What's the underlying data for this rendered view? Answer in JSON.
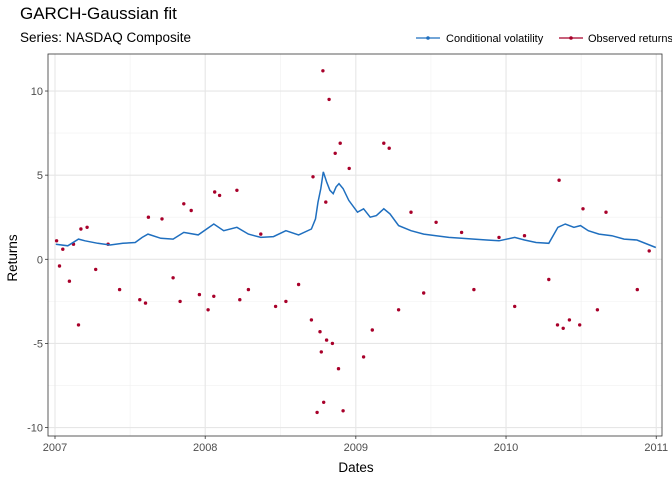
{
  "chart_data": {
    "type": "line",
    "title": "GARCH-Gaussian fit",
    "subtitle": "Series: NASDAQ Composite",
    "xlabel": "Dates",
    "ylabel": "Returns",
    "xlim": [
      "2006-12-15",
      "2011-01-15"
    ],
    "ylim": [
      -10.5,
      12.2
    ],
    "x_ticks": [
      {
        "date": "2007-01-01",
        "label": "2007"
      },
      {
        "date": "2008-01-01",
        "label": "2008"
      },
      {
        "date": "2009-01-01",
        "label": "2009"
      },
      {
        "date": "2010-01-01",
        "label": "2010"
      },
      {
        "date": "2011-01-01",
        "label": "2011"
      }
    ],
    "y_ticks": [
      -10,
      -5,
      0,
      5,
      10
    ],
    "y_tick_labels": [
      "-10",
      "-5",
      "0",
      "5",
      "10"
    ],
    "grid": true,
    "legend_position": "top-right",
    "colors": {
      "volatility": "#1f6fbf",
      "returns": "#a8002a"
    },
    "series": [
      {
        "name": "Conditional volatility",
        "kind": "line",
        "points": [
          [
            "2007-01-03",
            0.9
          ],
          [
            "2007-02-01",
            0.8
          ],
          [
            "2007-02-27",
            1.2
          ],
          [
            "2007-03-15",
            1.1
          ],
          [
            "2007-04-15",
            0.95
          ],
          [
            "2007-05-15",
            0.85
          ],
          [
            "2007-06-15",
            0.95
          ],
          [
            "2007-07-15",
            1.0
          ],
          [
            "2007-08-01",
            1.3
          ],
          [
            "2007-08-15",
            1.5
          ],
          [
            "2007-09-15",
            1.25
          ],
          [
            "2007-10-15",
            1.2
          ],
          [
            "2007-11-10",
            1.6
          ],
          [
            "2007-12-15",
            1.45
          ],
          [
            "2008-01-22",
            2.1
          ],
          [
            "2008-02-15",
            1.7
          ],
          [
            "2008-03-18",
            1.9
          ],
          [
            "2008-04-15",
            1.5
          ],
          [
            "2008-05-15",
            1.3
          ],
          [
            "2008-06-15",
            1.35
          ],
          [
            "2008-07-15",
            1.7
          ],
          [
            "2008-08-15",
            1.45
          ],
          [
            "2008-09-15",
            1.8
          ],
          [
            "2008-09-25",
            2.4
          ],
          [
            "2008-10-01",
            3.4
          ],
          [
            "2008-10-08",
            4.2
          ],
          [
            "2008-10-14",
            5.2
          ],
          [
            "2008-10-22",
            4.6
          ],
          [
            "2008-10-30",
            4.1
          ],
          [
            "2008-11-07",
            3.9
          ],
          [
            "2008-11-14",
            4.3
          ],
          [
            "2008-11-21",
            4.5
          ],
          [
            "2008-12-01",
            4.2
          ],
          [
            "2008-12-15",
            3.5
          ],
          [
            "2009-01-05",
            2.8
          ],
          [
            "2009-01-20",
            3.0
          ],
          [
            "2009-02-05",
            2.5
          ],
          [
            "2009-02-20",
            2.6
          ],
          [
            "2009-03-10",
            3.0
          ],
          [
            "2009-03-25",
            2.7
          ],
          [
            "2009-04-15",
            2.0
          ],
          [
            "2009-05-15",
            1.7
          ],
          [
            "2009-06-15",
            1.5
          ],
          [
            "2009-07-15",
            1.4
          ],
          [
            "2009-08-15",
            1.3
          ],
          [
            "2009-09-15",
            1.25
          ],
          [
            "2009-10-15",
            1.2
          ],
          [
            "2009-11-15",
            1.15
          ],
          [
            "2009-12-15",
            1.1
          ],
          [
            "2010-01-22",
            1.3
          ],
          [
            "2010-02-15",
            1.15
          ],
          [
            "2010-03-15",
            1.0
          ],
          [
            "2010-04-15",
            0.95
          ],
          [
            "2010-05-07",
            1.9
          ],
          [
            "2010-05-25",
            2.1
          ],
          [
            "2010-06-15",
            1.9
          ],
          [
            "2010-07-01",
            2.0
          ],
          [
            "2010-07-20",
            1.7
          ],
          [
            "2010-08-15",
            1.5
          ],
          [
            "2010-09-15",
            1.4
          ],
          [
            "2010-10-15",
            1.2
          ],
          [
            "2010-11-15",
            1.15
          ],
          [
            "2010-12-31",
            0.7
          ]
        ]
      },
      {
        "name": "Observed returns",
        "kind": "points",
        "points": [
          [
            "2007-01-05",
            1.1
          ],
          [
            "2007-01-12",
            -0.4
          ],
          [
            "2007-01-20",
            0.6
          ],
          [
            "2007-02-05",
            -1.3
          ],
          [
            "2007-02-15",
            0.9
          ],
          [
            "2007-02-27",
            -3.9
          ],
          [
            "2007-03-05",
            1.8
          ],
          [
            "2007-03-20",
            1.9
          ],
          [
            "2007-04-10",
            -0.6
          ],
          [
            "2007-05-10",
            0.9
          ],
          [
            "2007-06-07",
            -1.8
          ],
          [
            "2007-07-26",
            -2.4
          ],
          [
            "2007-08-09",
            -2.6
          ],
          [
            "2007-08-16",
            2.5
          ],
          [
            "2007-09-18",
            2.4
          ],
          [
            "2007-10-15",
            -1.1
          ],
          [
            "2007-11-01",
            -2.5
          ],
          [
            "2007-11-10",
            3.3
          ],
          [
            "2007-11-28",
            2.9
          ],
          [
            "2007-12-18",
            -2.1
          ],
          [
            "2008-01-08",
            -3.0
          ],
          [
            "2008-01-22",
            -2.2
          ],
          [
            "2008-01-24",
            4.0
          ],
          [
            "2008-02-05",
            3.8
          ],
          [
            "2008-03-18",
            4.1
          ],
          [
            "2008-03-25",
            -2.4
          ],
          [
            "2008-04-15",
            -1.8
          ],
          [
            "2008-05-15",
            1.5
          ],
          [
            "2008-06-20",
            -2.8
          ],
          [
            "2008-07-15",
            -2.5
          ],
          [
            "2008-08-15",
            -1.5
          ],
          [
            "2008-09-15",
            -3.6
          ],
          [
            "2008-09-19",
            4.9
          ],
          [
            "2008-09-29",
            -9.1
          ],
          [
            "2008-10-06",
            -4.3
          ],
          [
            "2008-10-09",
            -5.5
          ],
          [
            "2008-10-13",
            11.2
          ],
          [
            "2008-10-15",
            -8.5
          ],
          [
            "2008-10-20",
            3.4
          ],
          [
            "2008-10-22",
            -4.8
          ],
          [
            "2008-10-28",
            9.5
          ],
          [
            "2008-11-05",
            -5.0
          ],
          [
            "2008-11-12",
            6.3
          ],
          [
            "2008-11-20",
            -6.5
          ],
          [
            "2008-11-24",
            6.9
          ],
          [
            "2008-12-01",
            -9.0
          ],
          [
            "2008-12-16",
            5.4
          ],
          [
            "2009-01-20",
            -5.8
          ],
          [
            "2009-02-10",
            -4.2
          ],
          [
            "2009-03-10",
            6.9
          ],
          [
            "2009-03-23",
            6.6
          ],
          [
            "2009-04-15",
            -3.0
          ],
          [
            "2009-05-15",
            2.8
          ],
          [
            "2009-06-15",
            -2.0
          ],
          [
            "2009-07-15",
            2.2
          ],
          [
            "2009-09-15",
            1.6
          ],
          [
            "2009-10-15",
            -1.8
          ],
          [
            "2009-12-15",
            1.3
          ],
          [
            "2010-01-22",
            -2.8
          ],
          [
            "2010-02-15",
            1.4
          ],
          [
            "2010-04-15",
            -1.2
          ],
          [
            "2010-05-06",
            -3.9
          ],
          [
            "2010-05-10",
            4.7
          ],
          [
            "2010-05-20",
            -4.1
          ],
          [
            "2010-06-04",
            -3.6
          ],
          [
            "2010-06-29",
            -3.9
          ],
          [
            "2010-07-07",
            3.0
          ],
          [
            "2010-08-11",
            -3.0
          ],
          [
            "2010-09-01",
            2.8
          ],
          [
            "2010-11-16",
            -1.8
          ],
          [
            "2010-12-15",
            0.5
          ]
        ]
      }
    ]
  }
}
